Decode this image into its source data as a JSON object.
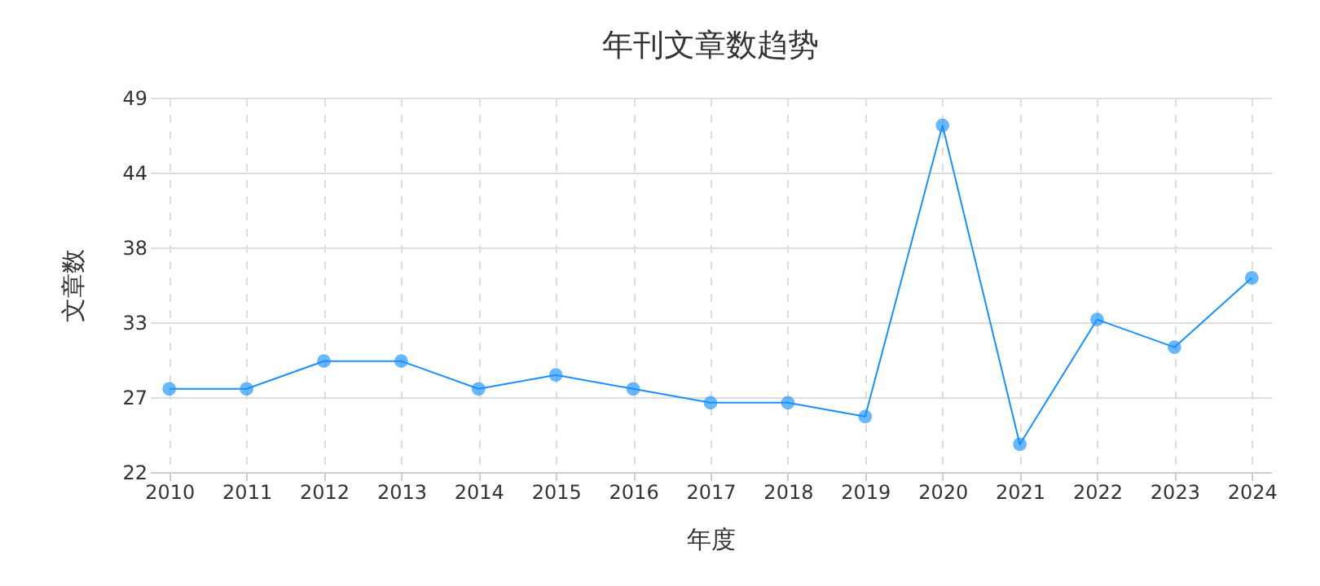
{
  "chart_data": {
    "type": "line",
    "title": "年刊文章数趋势",
    "xlabel": "年度",
    "ylabel": "文章数",
    "categories": [
      "2010",
      "2011",
      "2012",
      "2013",
      "2014",
      "2015",
      "2016",
      "2017",
      "2018",
      "2019",
      "2020",
      "2021",
      "2022",
      "2023",
      "2024"
    ],
    "series": [
      {
        "color": "#1890ff",
        "values": [
          28,
          28,
          30,
          30,
          28,
          29,
          28,
          27,
          27,
          26,
          47,
          24,
          33,
          31,
          36
        ]
      }
    ],
    "ylim": [
      22,
      49
    ],
    "yticks": [
      22,
      {
        "value": 27.4,
        "label": "27"
      },
      {
        "value": 32.8,
        "label": "33"
      },
      {
        "value": 38.2,
        "label": "38"
      },
      {
        "value": 43.6,
        "label": "44"
      },
      49
    ],
    "grid": true,
    "marker": "circle",
    "line_style": "solid"
  }
}
